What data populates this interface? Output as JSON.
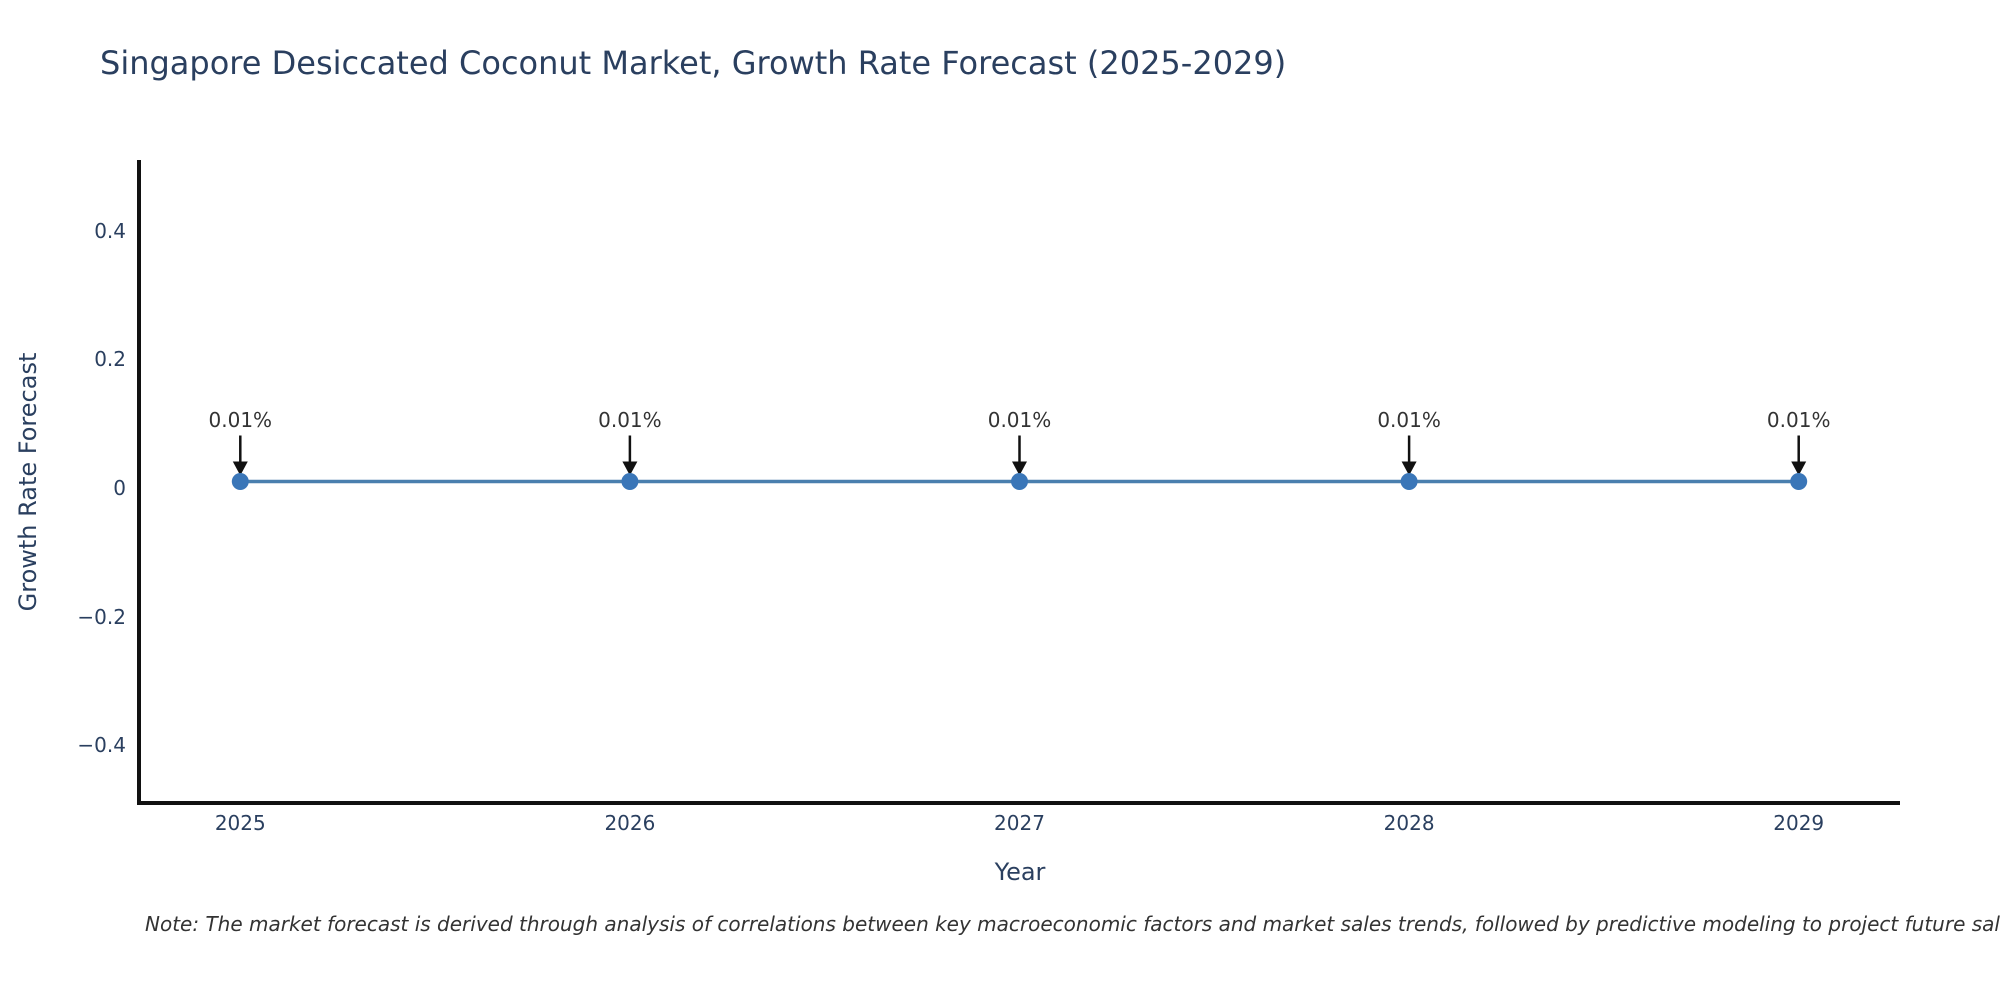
{
  "title": {
    "text": "Singapore Desiccated Coconut Market, Growth Rate Forecast (2025-2029)",
    "color": "#2a3f5f"
  },
  "note": {
    "text": "Note: The market forecast is derived through analysis of correlations between key macroeconomic factors and market sales trends, followed by predictive modeling to project future sales"
  },
  "chart_data": {
    "type": "line",
    "title": "Singapore Desiccated Coconut Market, Growth Rate Forecast (2025-2029)",
    "xlabel": "Year",
    "ylabel": "Growth Rate Forecast",
    "x": [
      2025,
      2026,
      2027,
      2028,
      2029
    ],
    "series": [
      {
        "name": "Growth Rate Forecast",
        "values": [
          0.01,
          0.01,
          0.01,
          0.01,
          0.01
        ]
      }
    ],
    "point_labels": [
      "0.01%",
      "0.01%",
      "0.01%",
      "0.01%",
      "0.01%"
    ],
    "x_tick_labels": [
      "2025",
      "2026",
      "2027",
      "2028",
      "2029"
    ],
    "y_tick_values": [
      0.4,
      0.2,
      0,
      -0.2,
      -0.4
    ],
    "y_tick_labels": [
      "0.4",
      "0.2",
      "0",
      "−0.2",
      "−0.4"
    ],
    "xlim": [
      2024.74,
      2029.26
    ],
    "ylim": [
      -0.49,
      0.51
    ],
    "grid": false,
    "legend": false,
    "line_color": "#4a7fae",
    "marker_color": "#3a76b8",
    "axis_line_color": "#111111",
    "arrow_color": "#111111"
  }
}
